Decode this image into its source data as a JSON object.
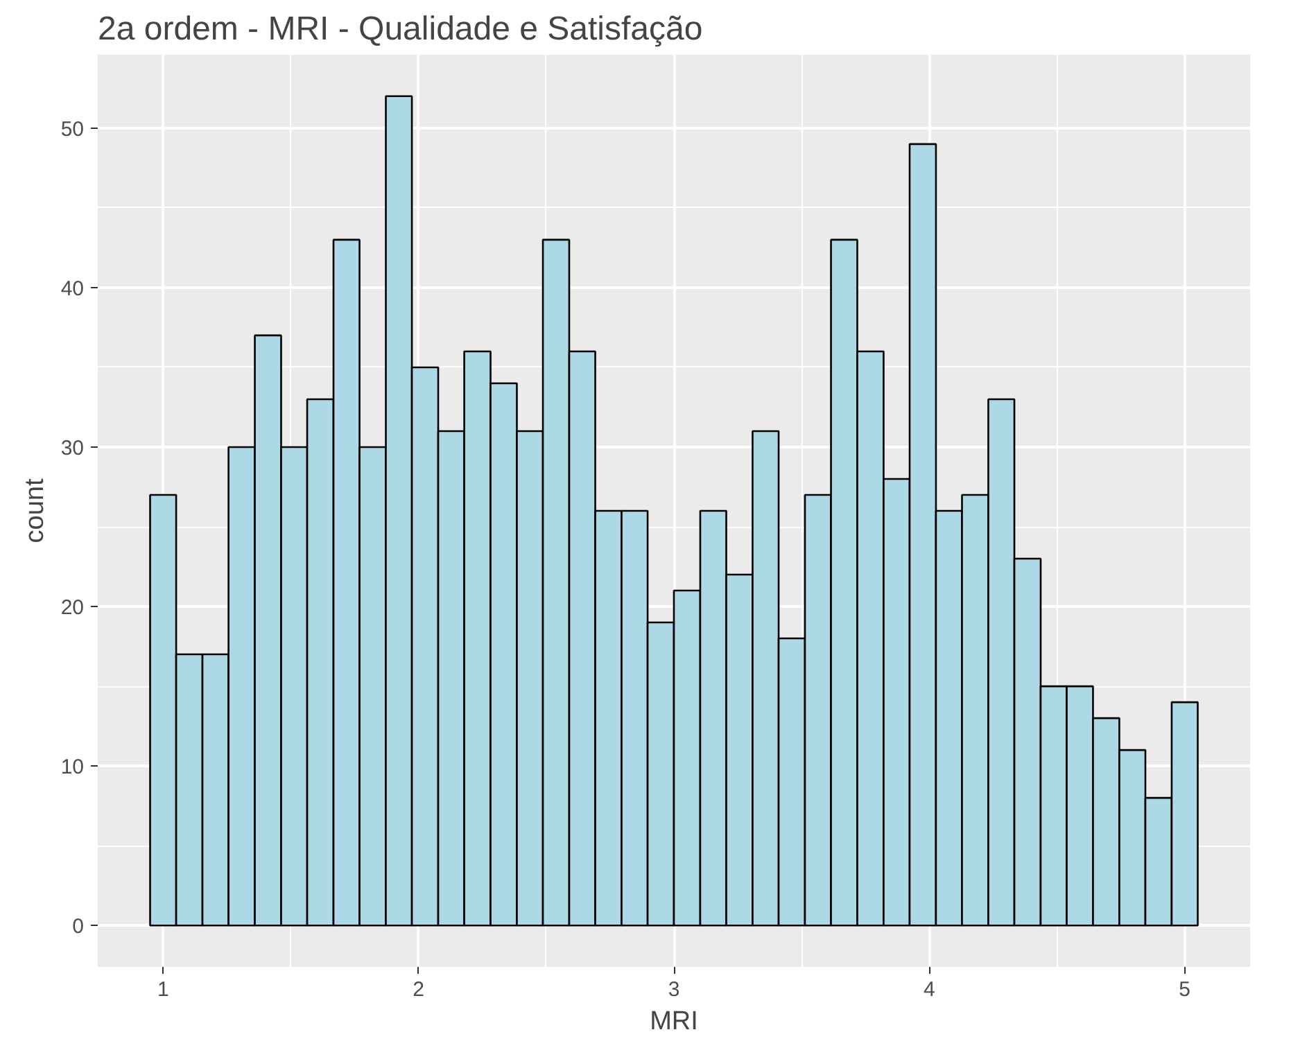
{
  "chart_data": {
    "type": "histogram",
    "title": "2a ordem - MRI - Qualidade e Satisfação",
    "xlabel": "MRI",
    "ylabel": "count",
    "bins": [
      0.949,
      1.051,
      1.154,
      1.256,
      1.359,
      1.462,
      1.564,
      1.667,
      1.769,
      1.872,
      1.974,
      2.077,
      2.179,
      2.282,
      2.385,
      2.487,
      2.59,
      2.692,
      2.795,
      2.897,
      3.0,
      3.103,
      3.205,
      3.308,
      3.41,
      3.513,
      3.615,
      3.718,
      3.821,
      3.923,
      4.026,
      4.128,
      4.231,
      4.333,
      4.436,
      4.538,
      4.641,
      4.744,
      4.846,
      4.949,
      5.051
    ],
    "values": [
      27,
      17,
      17,
      30,
      37,
      30,
      33,
      43,
      30,
      52,
      35,
      31,
      36,
      34,
      31,
      43,
      36,
      26,
      26,
      19,
      21,
      26,
      22,
      31,
      18,
      27,
      43,
      36,
      28,
      49,
      26,
      27,
      33,
      23,
      15,
      15,
      13,
      11,
      8,
      14
    ],
    "color": "#add8e6",
    "xlim": [
      0.744,
      5.256
    ],
    "ylim": [
      -2.6,
      54.6
    ],
    "xticks": [
      1,
      2,
      3,
      4,
      5
    ],
    "yticks": [
      0,
      10,
      20,
      30,
      40,
      50
    ],
    "grid": true
  }
}
